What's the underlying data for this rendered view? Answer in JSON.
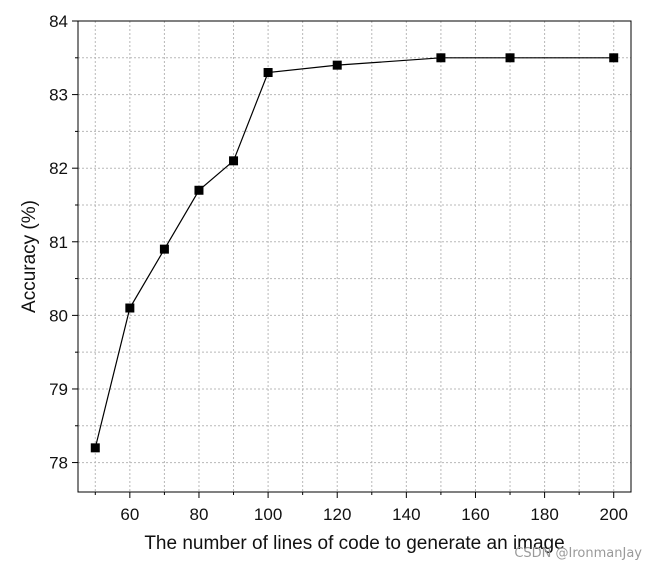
{
  "chart_data": {
    "type": "line",
    "title": "",
    "xlabel": "The number of lines of code to generate an image",
    "ylabel": "Accuracy (%)",
    "xlim": [
      45,
      205
    ],
    "ylim": [
      77.6,
      84
    ],
    "xticks": [
      60,
      80,
      100,
      120,
      140,
      160,
      180,
      200
    ],
    "yticks": [
      78,
      79,
      80,
      81,
      82,
      83,
      84
    ],
    "grid": true,
    "legend": "none",
    "marker": "square",
    "colors": {
      "line": "#000000",
      "marker": "#000000",
      "grid": "#b8b8b8"
    },
    "series": [
      {
        "x": [
          50,
          60,
          70,
          80,
          90,
          100,
          120,
          150,
          170,
          200
        ],
        "y": [
          78.2,
          80.1,
          80.9,
          81.7,
          82.1,
          83.3,
          83.4,
          83.5,
          83.5,
          83.5
        ]
      }
    ]
  },
  "watermark": "CSDN @IronmanJay"
}
